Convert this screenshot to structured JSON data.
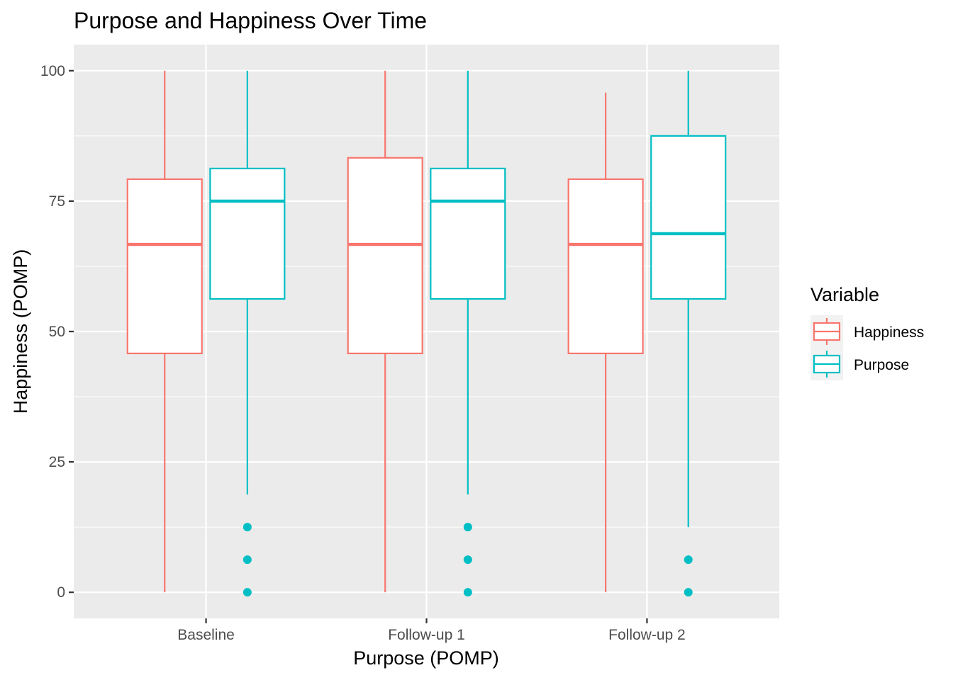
{
  "chart_data": {
    "type": "boxplot",
    "title": "Purpose and Happiness Over Time",
    "xlabel": "Purpose (POMP)",
    "ylabel": "Happiness (POMP)",
    "categories": [
      "Baseline",
      "Follow-up 1",
      "Follow-up 2"
    ],
    "ylim": [
      -5,
      105
    ],
    "yticks": [
      0,
      25,
      50,
      75,
      100
    ],
    "ytick_labels": [
      "0",
      "25",
      "50",
      "75",
      "100"
    ],
    "grid": true,
    "legend": {
      "title": "Variable",
      "position": "right"
    },
    "series": [
      {
        "name": "Happiness",
        "color": "#F8766D",
        "boxes": [
          {
            "min": 0,
            "q1": 45.8,
            "median": 66.7,
            "q3": 79.2,
            "max": 100,
            "outliers": []
          },
          {
            "min": 0,
            "q1": 45.8,
            "median": 66.7,
            "q3": 83.3,
            "max": 100,
            "outliers": []
          },
          {
            "min": 0,
            "q1": 45.8,
            "median": 66.7,
            "q3": 79.2,
            "max": 95.8,
            "outliers": []
          }
        ]
      },
      {
        "name": "Purpose",
        "color": "#00BFC4",
        "boxes": [
          {
            "min": 18.75,
            "q1": 56.25,
            "median": 75,
            "q3": 81.25,
            "max": 100,
            "outliers": [
              12.5,
              6.25,
              0
            ]
          },
          {
            "min": 18.75,
            "q1": 56.25,
            "median": 75,
            "q3": 81.25,
            "max": 100,
            "outliers": [
              12.5,
              6.25,
              0
            ]
          },
          {
            "min": 12.5,
            "q1": 56.25,
            "median": 68.75,
            "q3": 87.5,
            "max": 100,
            "outliers": [
              6.25,
              0
            ]
          }
        ]
      }
    ]
  }
}
